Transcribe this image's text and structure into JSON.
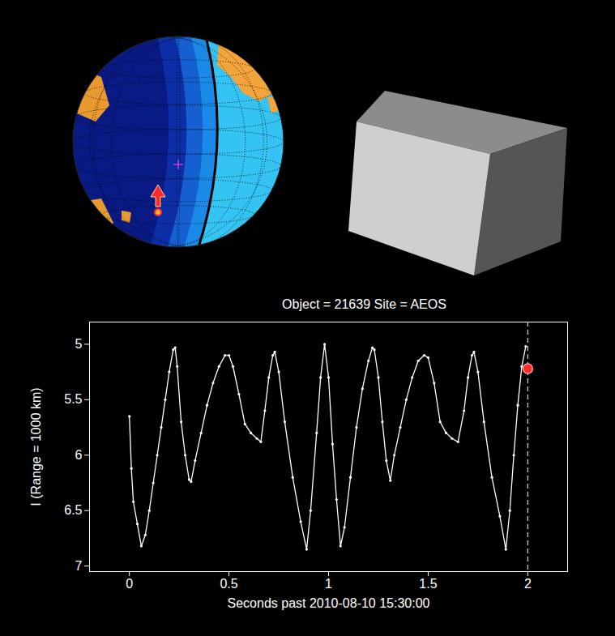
{
  "chart_data": {
    "type": "line",
    "title": "Object = 21639   Site = AEOS",
    "x_label": "Seconds past 2010-08-10 15:30:00",
    "y_label": "I (Range = 1000 km)",
    "x": [
      0,
      0.01,
      0.02,
      0.04,
      0.06,
      0.08,
      0.1,
      0.12,
      0.14,
      0.16,
      0.18,
      0.2,
      0.22,
      0.23,
      0.24,
      0.26,
      0.28,
      0.3,
      0.31,
      0.33,
      0.36,
      0.39,
      0.42,
      0.45,
      0.48,
      0.5,
      0.52,
      0.55,
      0.58,
      0.61,
      0.64,
      0.66,
      0.68,
      0.7,
      0.72,
      0.73,
      0.75,
      0.78,
      0.82,
      0.86,
      0.89,
      0.91,
      0.94,
      0.96,
      0.98,
      1.0,
      1.02,
      1.04,
      1.06,
      1.08,
      1.11,
      1.14,
      1.17,
      1.2,
      1.22,
      1.23,
      1.25,
      1.27,
      1.29,
      1.31,
      1.33,
      1.36,
      1.39,
      1.42,
      1.45,
      1.48,
      1.5,
      1.53,
      1.56,
      1.59,
      1.62,
      1.65,
      1.68,
      1.7,
      1.72,
      1.73,
      1.75,
      1.78,
      1.82,
      1.86,
      1.89,
      1.91,
      1.93,
      1.95,
      1.97,
      1.99
    ],
    "values": [
      5.65,
      6.12,
      6.42,
      6.62,
      6.82,
      6.72,
      6.5,
      6.25,
      6.0,
      5.75,
      5.5,
      5.25,
      5.05,
      5.03,
      5.2,
      5.7,
      6.0,
      6.22,
      6.24,
      6.05,
      5.8,
      5.55,
      5.35,
      5.2,
      5.1,
      5.1,
      5.2,
      5.45,
      5.72,
      5.8,
      5.85,
      5.88,
      5.6,
      5.3,
      5.1,
      5.07,
      5.25,
      5.7,
      6.2,
      6.6,
      6.85,
      6.5,
      5.8,
      5.3,
      5.0,
      5.3,
      5.9,
      6.4,
      6.82,
      6.65,
      6.2,
      5.75,
      5.4,
      5.15,
      5.03,
      5.05,
      5.3,
      5.7,
      6.05,
      6.23,
      6.0,
      5.75,
      5.5,
      5.3,
      5.15,
      5.1,
      5.12,
      5.35,
      5.7,
      5.8,
      5.85,
      5.88,
      5.6,
      5.3,
      5.1,
      5.07,
      5.25,
      5.7,
      6.2,
      6.55,
      6.85,
      6.5,
      6.0,
      5.55,
      5.2,
      5.02
    ],
    "color": "#ffffff",
    "marker": "dot",
    "current_point": {
      "x": 2,
      "y": 5.22,
      "color": "#ff2a2a"
    },
    "cursor_line": {
      "x": 2,
      "line_style": "dashed"
    },
    "xlim": [
      -0.2,
      2.2
    ],
    "xticks": [
      0,
      0.5,
      1,
      1.5,
      2
    ],
    "ylim": [
      7.05,
      4.8
    ],
    "yticks": [
      5,
      5.5,
      6,
      6.5,
      7
    ],
    "grid": false
  }
}
